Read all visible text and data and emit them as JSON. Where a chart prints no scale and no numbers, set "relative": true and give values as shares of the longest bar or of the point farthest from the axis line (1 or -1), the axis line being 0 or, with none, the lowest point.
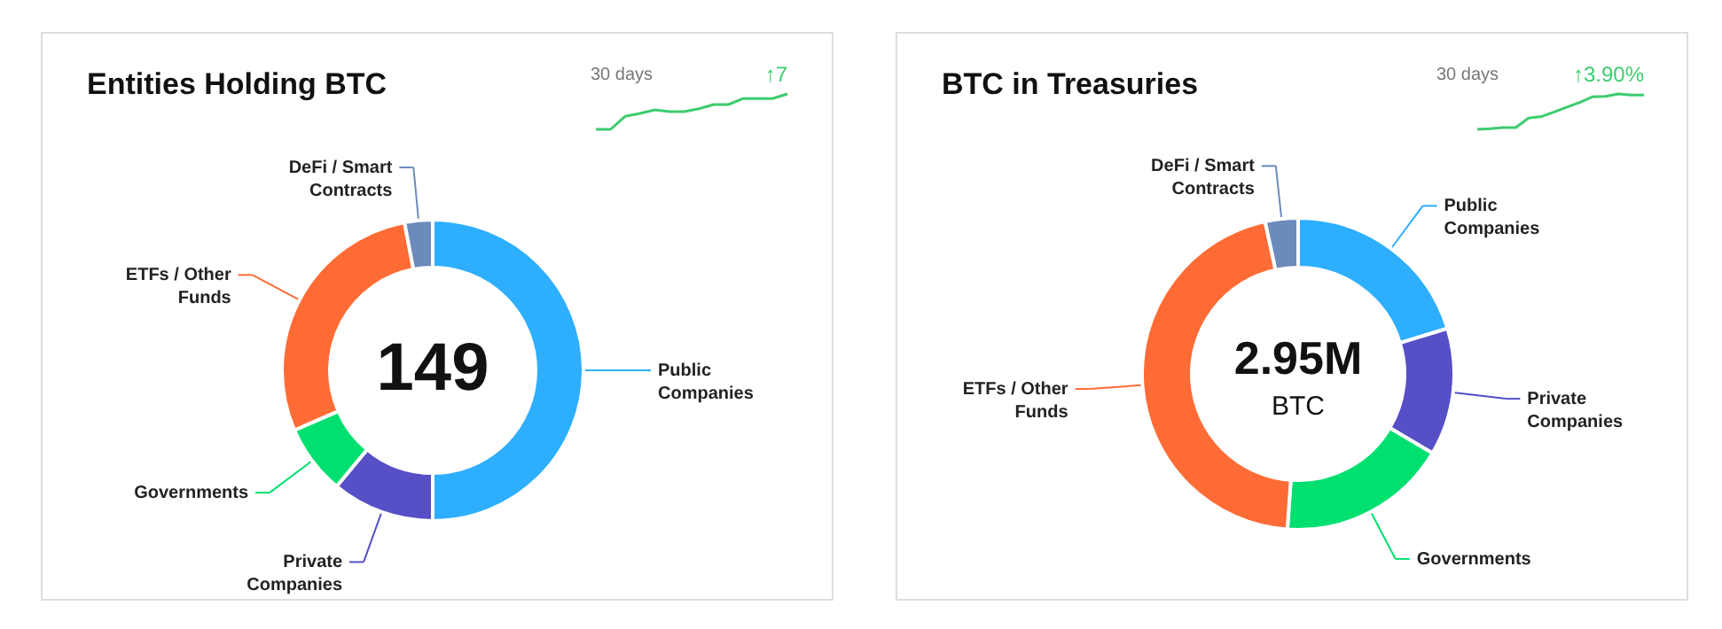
{
  "chart_data": [
    {
      "type": "donut",
      "title": "Entities Holding BTC",
      "categories": [
        "Public Companies",
        "Private Companies",
        "Governments",
        "ETFs / Other Funds",
        "DeFi / Smart Contracts"
      ],
      "values": [
        50,
        11,
        7.5,
        28.5,
        3
      ],
      "colors": [
        "#2eaefe",
        "#564fc6",
        "#00e070",
        "#ff6b35",
        "#6b8bbb"
      ],
      "annotations": [
        "149"
      ],
      "legend": "left"
    },
    {
      "type": "line",
      "relative": true,
      "categories": [
        null,
        null,
        null,
        null,
        null,
        null,
        null,
        null,
        null,
        null,
        null,
        null,
        null,
        null
      ],
      "series": [
        {
          "color": "#3ccc6e",
          "values": [
            0,
            0,
            0.37,
            0.45,
            0.55,
            0.5,
            0.5,
            0.58,
            0.7,
            0.7,
            0.87,
            0.87,
            0.87,
            1
          ]
        }
      ],
      "annotations": [
        "30 days",
        "↑7"
      ],
      "grid": false
    },
    {
      "type": "donut",
      "title": "BTC in Treasuries",
      "categories": [
        "Public Companies",
        "Private Companies",
        "Governments",
        "ETFs / Other Funds",
        "DeFi / Smart Contracts"
      ],
      "values": [
        20.3,
        13.2,
        17.6,
        45.5,
        3.4
      ],
      "colors": [
        "#2eaefe",
        "#564fc6",
        "#00e070",
        "#ff6b35",
        "#6b8bbb"
      ],
      "annotations": [
        "2.95M",
        "BTC"
      ],
      "legend": "right"
    },
    {
      "type": "line",
      "relative": true,
      "categories": [
        null,
        null,
        null,
        null,
        null,
        null,
        null,
        null,
        null,
        null,
        null,
        null,
        null,
        null
      ],
      "series": [
        {
          "color": "#3ccc6e",
          "values": [
            0,
            0.02,
            0.05,
            0.05,
            0.32,
            0.36,
            0.49,
            0.63,
            0.76,
            0.92,
            0.93,
            1,
            0.97,
            0.97
          ]
        }
      ],
      "annotations": [
        "30 days",
        "↑3.90%"
      ],
      "grid": false
    }
  ]
}
